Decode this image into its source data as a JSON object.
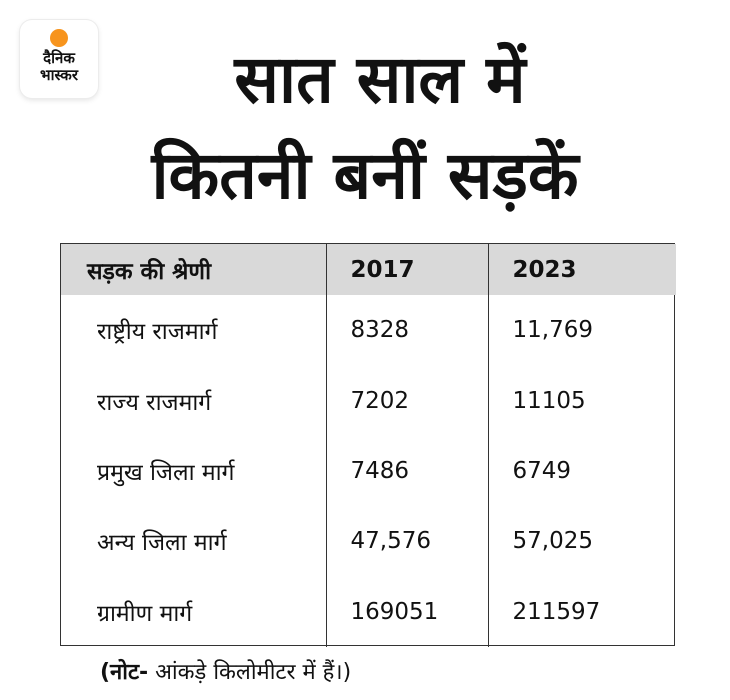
{
  "brand": {
    "line1": "दैनिक",
    "line2": "भास्कर",
    "sun_color": "#f7941d"
  },
  "headline": {
    "line1": "सात साल में",
    "line2": "कितनी बनीं सड़कें"
  },
  "table": {
    "headers": [
      "सड़क की श्रेणी",
      "2017",
      "2023"
    ],
    "rows": [
      [
        "राष्ट्रीय राजमार्ग",
        "8328",
        "11,769"
      ],
      [
        "राज्य राजमार्ग",
        "7202",
        "11105"
      ],
      [
        "प्रमुख जिला मार्ग",
        "7486",
        "6749"
      ],
      [
        "अन्य जिला मार्ग",
        "47,576",
        "57,025"
      ],
      [
        "ग्रामीण मार्ग",
        "169051",
        "211597"
      ]
    ],
    "header_bg": "#d9d9d9"
  },
  "note": {
    "bold_part": "(नोट-",
    "rest": " आंकड़े किलोमीटर में हैं।)"
  }
}
